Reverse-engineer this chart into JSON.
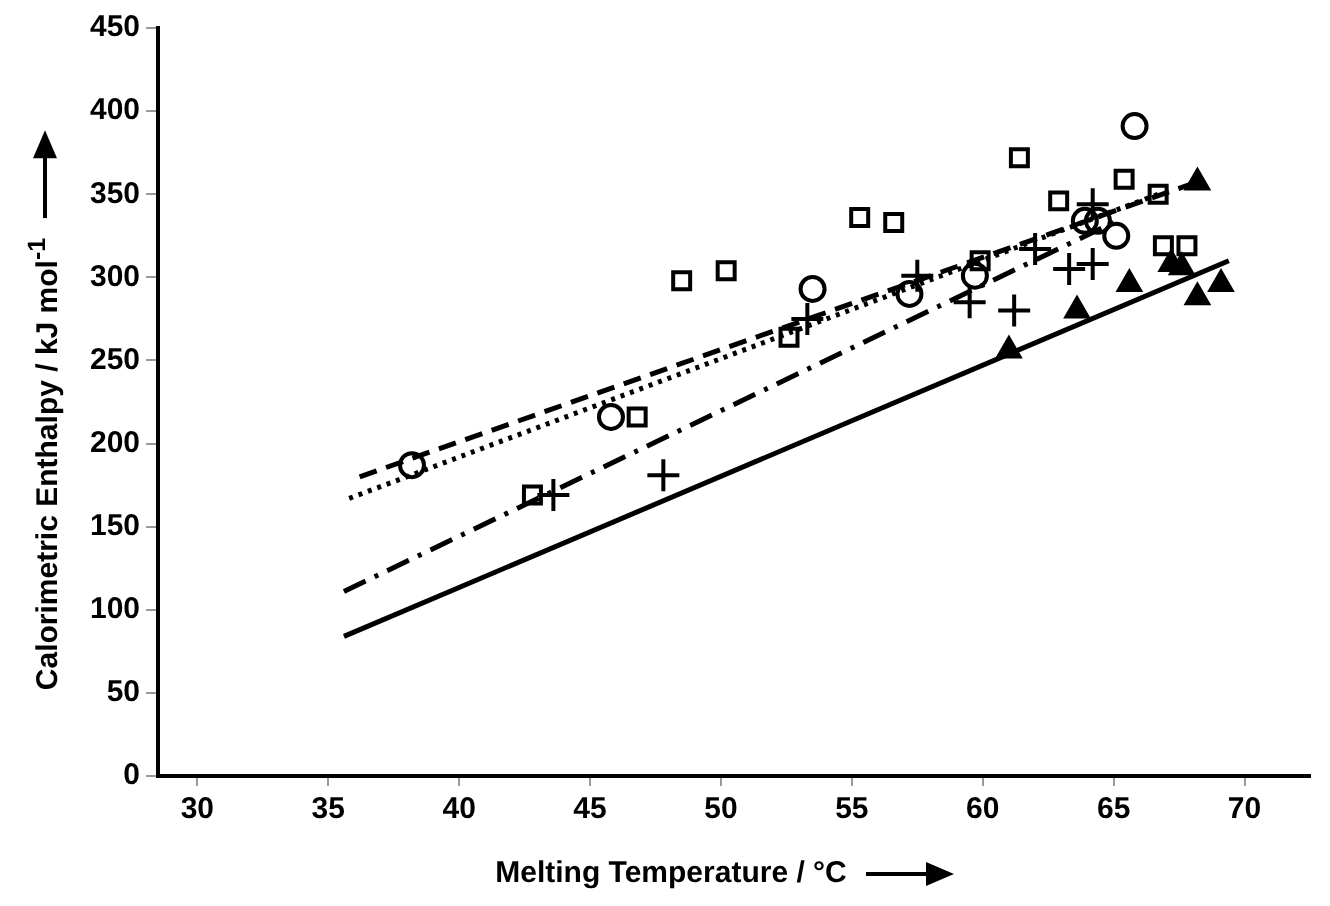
{
  "chart_data": {
    "type": "scatter",
    "xlabel": "Melting Temperature / °C",
    "ylabel": "Calorimetric Enthalpy / kJ mol$^{-1}$",
    "xlim": [
      28.5,
      72.5
    ],
    "ylim": [
      0,
      450
    ],
    "xticks": [
      30,
      35,
      40,
      45,
      50,
      55,
      60,
      65,
      70
    ],
    "yticks": [
      0,
      50,
      100,
      150,
      200,
      250,
      300,
      350,
      400,
      450
    ],
    "grid": false,
    "legend": false,
    "series": [
      {
        "type": "scatter",
        "marker": "circle",
        "color": "#000000",
        "x": [
          38.2,
          45.8,
          53.5,
          57.2,
          59.7,
          63.9,
          64.4,
          65.1,
          65.8
        ],
        "values": [
          187,
          216,
          293,
          290,
          301,
          334,
          334,
          325,
          391
        ]
      },
      {
        "type": "scatter",
        "marker": "square",
        "color": "#000000",
        "x": [
          42.8,
          46.8,
          48.5,
          50.2,
          52.6,
          55.3,
          56.6,
          59.9,
          61.4,
          62.9,
          65.4,
          66.7,
          66.9,
          67.8
        ],
        "values": [
          169,
          216,
          298,
          304,
          264,
          336,
          333,
          310,
          372,
          346,
          359,
          350,
          319,
          319
        ]
      },
      {
        "type": "scatter",
        "marker": "cross",
        "color": "#000000",
        "x": [
          43.6,
          47.8,
          53.3,
          57.5,
          59.5,
          61.2,
          62.0,
          63.3,
          64.2,
          64.2
        ],
        "values": [
          169,
          181,
          275,
          301,
          285,
          280,
          317,
          305,
          344,
          308
        ]
      },
      {
        "type": "scatter",
        "marker": "triangle",
        "color": "#000000",
        "x": [
          61.0,
          63.6,
          65.6,
          67.2,
          67.6,
          68.2,
          68.2,
          69.1
        ],
        "values": [
          256,
          280,
          296,
          308,
          306,
          357,
          288,
          296
        ]
      },
      {
        "type": "line",
        "line_style": "dashed",
        "color": "#000000",
        "x": [
          36.2,
          68.3
        ],
        "values": [
          180,
          358
        ]
      },
      {
        "type": "line",
        "line_style": "dotted",
        "color": "#000000",
        "x": [
          35.8,
          66.7
        ],
        "values": [
          167,
          350
        ]
      },
      {
        "type": "line",
        "line_style": "dashdot",
        "color": "#000000",
        "x": [
          35.6,
          65
        ],
        "values": [
          111,
          333
        ]
      },
      {
        "type": "line",
        "line_style": "solid",
        "color": "#000000",
        "x": [
          35.6,
          69.4
        ],
        "values": [
          84,
          310
        ]
      }
    ]
  }
}
